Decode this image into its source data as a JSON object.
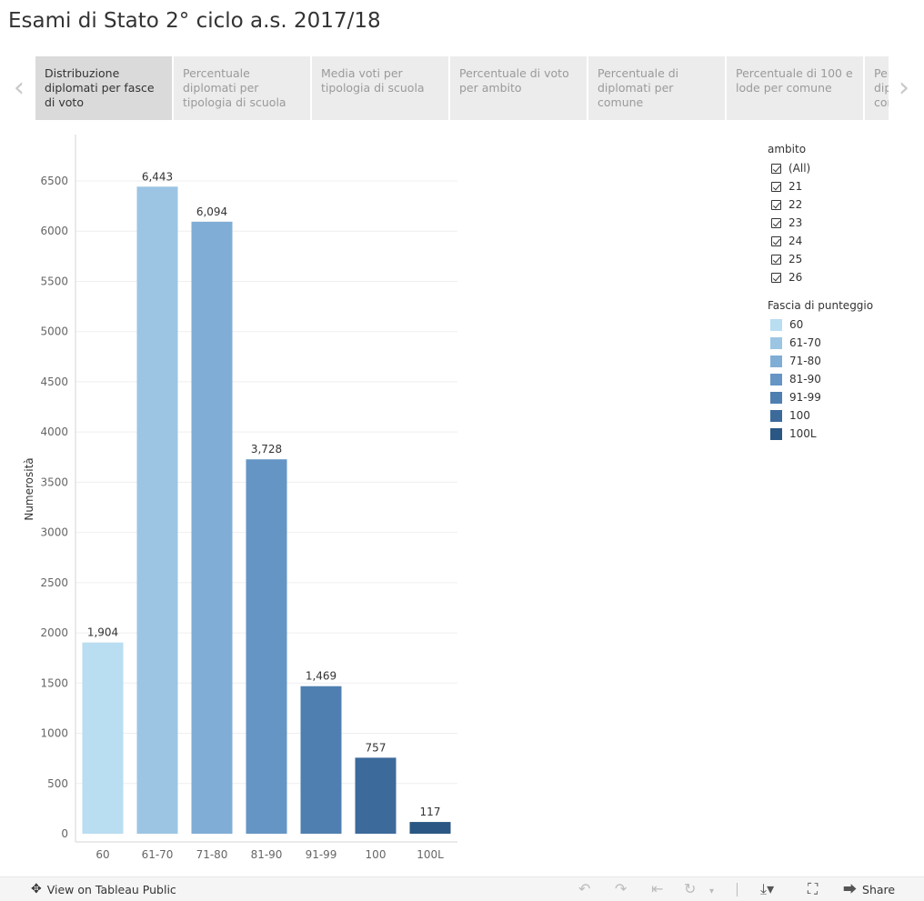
{
  "title": "Esami di Stato 2° ciclo a.s. 2017/18",
  "nav": {
    "prev_icon": "chevron-left-icon",
    "next_icon": "chevron-right-icon"
  },
  "tabs": [
    {
      "label": "Distribuzione diplomati per fasce di voto",
      "active": true
    },
    {
      "label": "Percentuale diplomati per tipologia di scuola",
      "active": false
    },
    {
      "label": "Media voti per tipologia di scuola",
      "active": false
    },
    {
      "label": "Percentuale di voto per ambito",
      "active": false
    },
    {
      "label": "Percentuale di diplomati per comune",
      "active": false
    },
    {
      "label": "Percentuale di 100 e lode per comune",
      "active": false
    },
    {
      "label": "Percentuale di diplomati per comune",
      "active": false
    }
  ],
  "filter": {
    "title": "ambito",
    "items": [
      "(All)",
      "21",
      "22",
      "23",
      "24",
      "25",
      "26"
    ],
    "checked": true
  },
  "color_legend": {
    "title": "Fascia di punteggio",
    "items": [
      {
        "label": "60",
        "color": "#b9ddf1"
      },
      {
        "label": "61-70",
        "color": "#9cc5e3"
      },
      {
        "label": "71-80",
        "color": "#80add5"
      },
      {
        "label": "81-90",
        "color": "#6595c4"
      },
      {
        "label": "91-99",
        "color": "#4f7fb0"
      },
      {
        "label": "100",
        "color": "#3c6a9b"
      },
      {
        "label": "100L",
        "color": "#2a5783"
      }
    ]
  },
  "chart_data": {
    "type": "bar",
    "categories": [
      "60",
      "61-70",
      "71-80",
      "81-90",
      "91-99",
      "100",
      "100L"
    ],
    "values": [
      1904,
      6443,
      6094,
      3728,
      1469,
      757,
      117
    ],
    "value_labels": [
      "1,904",
      "6,443",
      "6,094",
      "3,728",
      "1,469",
      "757",
      "117"
    ],
    "colors": [
      "#b9ddf1",
      "#9cc5e3",
      "#80add5",
      "#6595c4",
      "#4f7fb0",
      "#3c6a9b",
      "#2a5783"
    ],
    "ylabel": "Numerosità",
    "xlabel": "",
    "ylim": [
      0,
      6500
    ],
    "yticks": [
      0,
      500,
      1000,
      1500,
      2000,
      2500,
      3000,
      3500,
      4000,
      4500,
      5000,
      5500,
      6000,
      6500
    ],
    "grid": true
  },
  "footer": {
    "view_label": "View on Tableau Public",
    "view_icon": "tableau-logo-icon",
    "share_label": "Share",
    "share_icon": "share-icon",
    "controls": [
      "undo-icon",
      "redo-icon",
      "revert-icon",
      "refresh-icon",
      "pause-dropdown-icon",
      "download-icon",
      "fullscreen-icon"
    ]
  }
}
